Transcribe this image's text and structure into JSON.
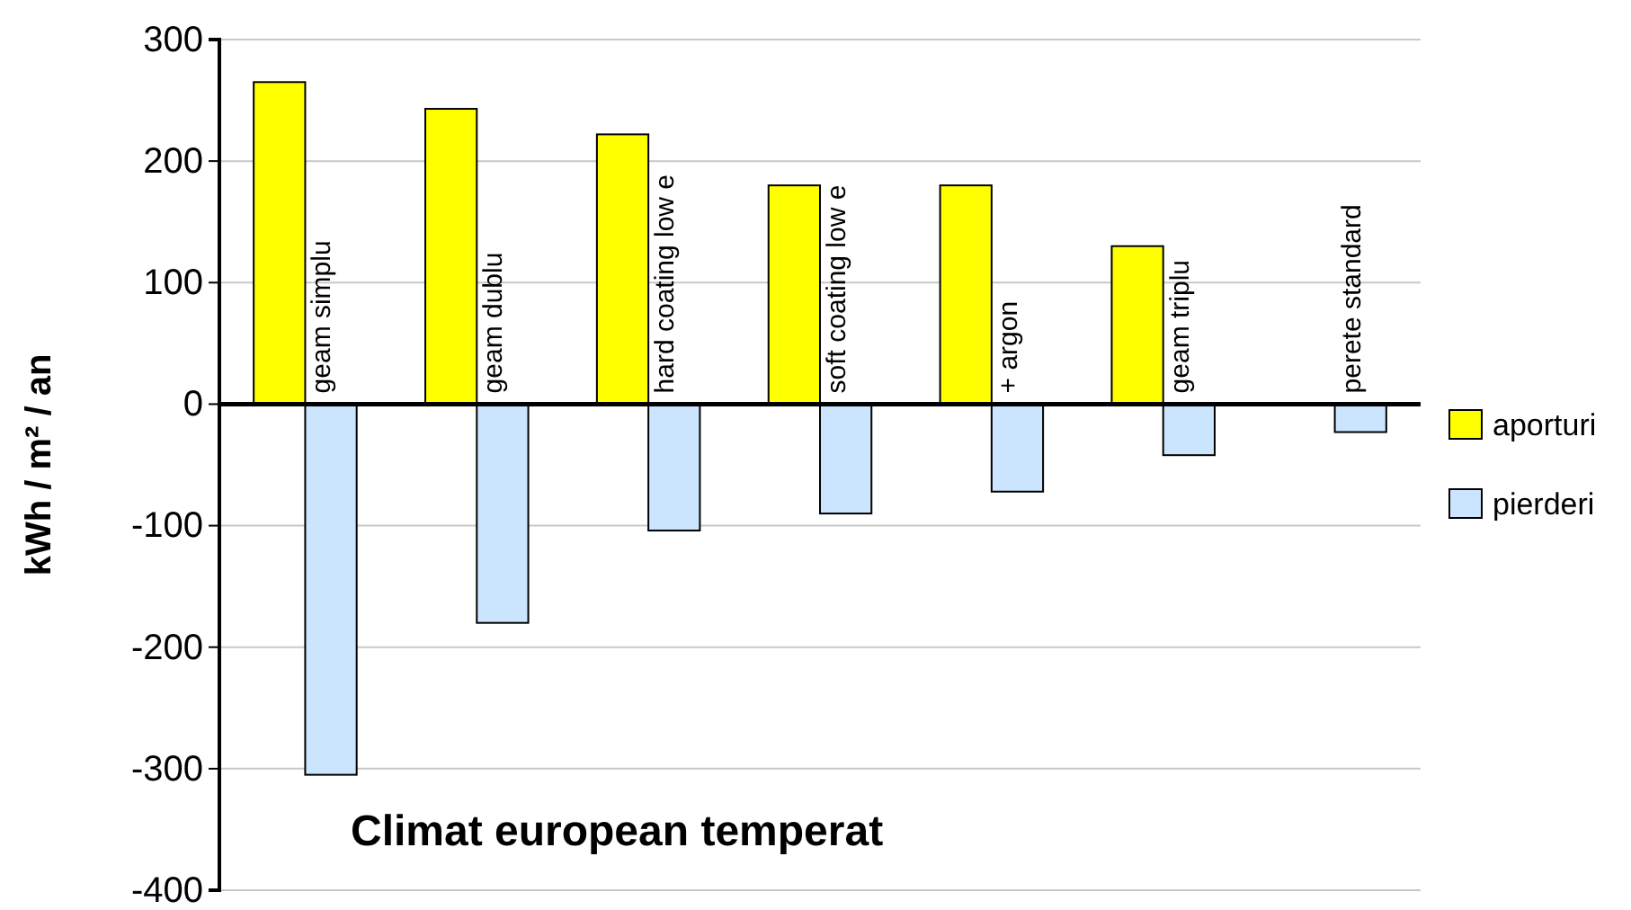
{
  "chart_data": {
    "type": "bar",
    "title": "Climat european temperat",
    "ylabel": "kWh / m² / an",
    "categories": [
      "geam simplu",
      "geam dublu",
      "hard coating low e",
      "soft coating low e",
      "+ argon",
      "geam triplu",
      "perete standard"
    ],
    "series": [
      {
        "name": "aporturi",
        "color": "#ffff00",
        "values": [
          265,
          243,
          222,
          180,
          180,
          130,
          null
        ]
      },
      {
        "name": "pierderi",
        "color": "#cce5ff",
        "values": [
          -305,
          -180,
          -104,
          -90,
          -72,
          -42,
          -23
        ]
      }
    ],
    "ylim": [
      -400,
      300
    ],
    "yticks": [
      -400,
      -300,
      -200,
      -100,
      0,
      100,
      200,
      300
    ],
    "grid": "y",
    "legend": "right"
  }
}
